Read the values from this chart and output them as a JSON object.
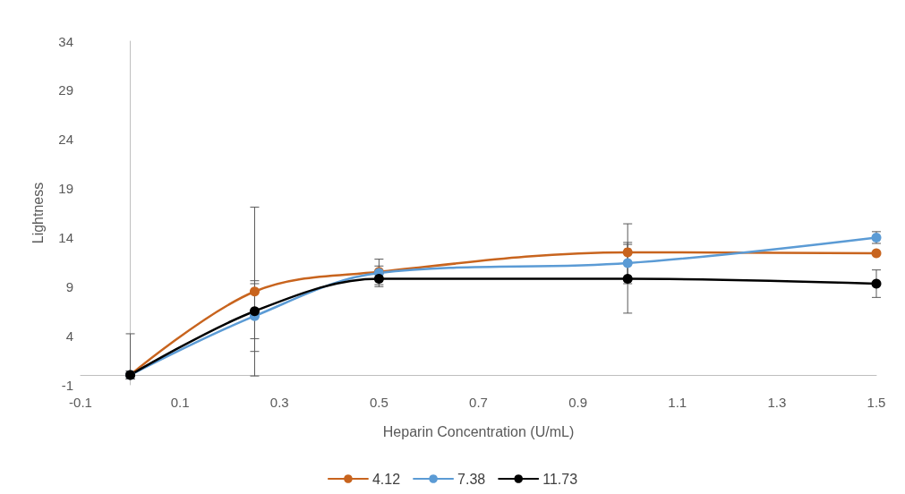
{
  "chart_data": {
    "type": "line",
    "xlabel": "Heparin Concentration (U/mL)",
    "ylabel": "Lightness",
    "x": [
      0,
      0.25,
      0.5,
      1.0,
      1.5
    ],
    "series": [
      {
        "name": "4.12",
        "color": "#c8641e",
        "values": [
          0,
          8.5,
          10.5,
          12.5,
          12.4
        ],
        "errors": [
          [
            -0.4,
            4.2
          ],
          8.6,
          1.3,
          2.9,
          null
        ]
      },
      {
        "name": "7.38",
        "color": "#5b9bd5",
        "values": [
          0,
          6.0,
          10.4,
          11.4,
          14.0
        ],
        "errors": [
          0.4,
          [
            2.4,
            9.6
          ],
          0.7,
          2.1,
          0.6
        ]
      },
      {
        "name": "11.73",
        "color": "#000000",
        "values": [
          0,
          6.5,
          9.8,
          9.8,
          9.3
        ],
        "errors": [
          0.4,
          [
            3.7,
            9.3
          ],
          0.8,
          3.5,
          1.4
        ]
      }
    ],
    "xlim": [
      -0.1,
      1.5
    ],
    "xticks": [
      -0.1,
      0.1,
      0.3,
      0.5,
      0.7,
      0.9,
      1.1,
      1.3,
      1.5
    ],
    "ylim": [
      -1,
      34
    ],
    "yticks": [
      -1,
      4,
      9,
      14,
      19,
      24,
      29,
      34
    ],
    "grid": false,
    "legend": "bottom",
    "marker": "circle",
    "line_style": "solid"
  }
}
